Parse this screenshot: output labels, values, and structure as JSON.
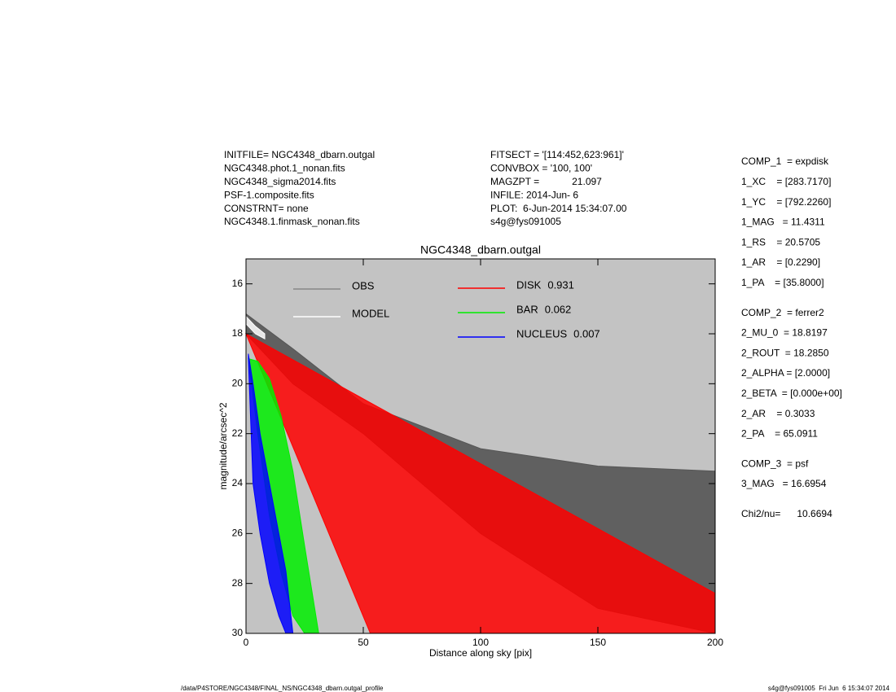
{
  "header_left": [
    "INITFILE= NGC4348_dbarn.outgal",
    "NGC4348.phot.1_nonan.fits",
    "NGC4348_sigma2014.fits",
    "PSF-1.composite.fits",
    "CONSTRNT= none",
    "NGC4348.1.finmask_nonan.fits"
  ],
  "header_middle": [
    "FITSECT = '[114:452,623:961]'",
    "CONVBOX = '100, 100'",
    "MAGZPT =            21.097",
    "INFILE: 2014-Jun- 6",
    "PLOT:  6-Jun-2014 15:34:07.00",
    "s4g@fys091005"
  ],
  "parameters": [
    [
      "COMP_1  = expdisk",
      "1_XC    = [283.7170]",
      "1_YC    = [792.2260]",
      "1_MAG   = 11.4311",
      "1_RS    = 20.5705",
      "1_AR    = [0.2290]",
      "1_PA    = [35.8000]"
    ],
    [
      "COMP_2  = ferrer2",
      "2_MU_0  = 18.8197",
      "2_ROUT  = 18.2850",
      "2_ALPHA = [2.0000]",
      "2_BETA  = [0.000e+00]",
      "2_AR    = 0.3033",
      "2_PA    = 65.0911"
    ],
    [
      "COMP_3  = psf",
      "3_MAG   = 16.6954"
    ],
    [
      "Chi2/nu=      10.6694"
    ]
  ],
  "footer_left": "/data/P4STORE/NGC4348/FINAL_NS/NGC4348_dbarn.outgal_profile",
  "footer_right": "s4g@fys091005  Fri Jun  6 15:34:07 2014",
  "chart_data": {
    "type": "band",
    "title": "NGC4348_dbarn.outgal",
    "x_label": "Distance along sky [pix]",
    "y_label": "magnitude/arcsec^2",
    "xlim": [
      0,
      200
    ],
    "xticks": [
      0,
      50,
      100,
      150,
      200
    ],
    "ylim": [
      30,
      15
    ],
    "yticks": [
      16,
      18,
      20,
      22,
      24,
      26,
      28,
      30
    ],
    "series": [
      {
        "name": "OBS",
        "color": "#555555",
        "x": [
          0,
          20,
          50,
          100,
          150,
          200
        ],
        "top": [
          17.2,
          18.6,
          20.8,
          22.6,
          23.3,
          23.5
        ],
        "bottom": [
          18,
          20,
          22,
          26,
          29,
          30
        ]
      },
      {
        "name": "MODEL",
        "color": "#ffffff",
        "x": [
          0,
          4,
          8
        ],
        "top": [
          17.3,
          17.7,
          18
        ],
        "bottom": [
          17.6,
          18,
          18.2
        ]
      },
      {
        "name": "DISK",
        "fraction": 0.931,
        "color": "#ff0000",
        "x": [
          0,
          53,
          200
        ],
        "top": [
          18,
          20.76,
          28.4
        ],
        "bottom": [
          18,
          30,
          30
        ]
      },
      {
        "name": "BAR",
        "fraction": 0.062,
        "color": "#00ee00",
        "x": [
          1,
          5,
          10,
          15,
          20,
          25,
          31
        ],
        "top": [
          19,
          19.1,
          19.8,
          21.3,
          23.5,
          26.5,
          30
        ],
        "bottom": [
          19,
          22,
          25.3,
          27.6,
          29.3,
          30,
          30
        ]
      },
      {
        "name": "NUCLEUS",
        "fraction": 0.007,
        "color": "#0000ff",
        "x": [
          1,
          3,
          6,
          10,
          14,
          17,
          20
        ],
        "top": [
          18.8,
          20,
          22,
          24,
          26,
          27.5,
          30
        ],
        "bottom": [
          19,
          24,
          26,
          28,
          29.3,
          30,
          30
        ]
      }
    ]
  }
}
